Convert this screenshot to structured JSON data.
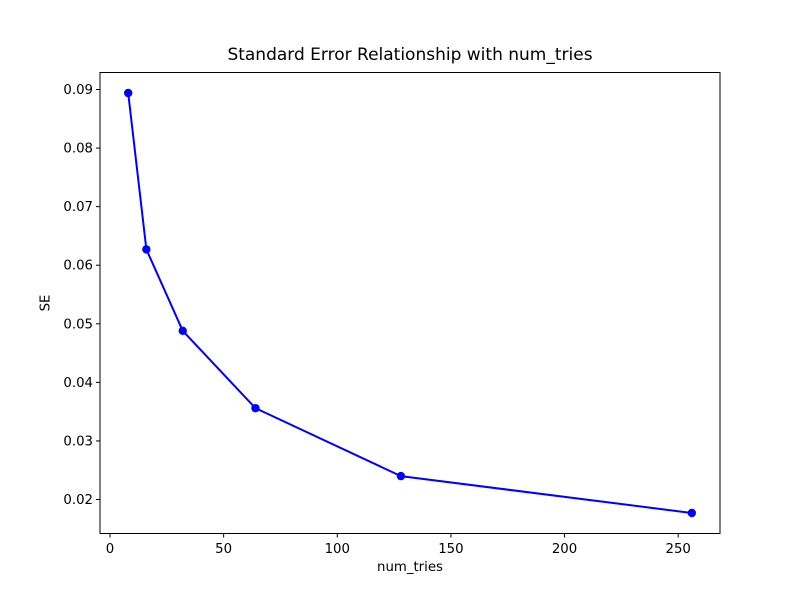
{
  "chart_data": {
    "type": "line",
    "title": "Standard Error Relationship with num_tries",
    "xlabel": "num_tries",
    "ylabel": "SE",
    "x": [
      8,
      16,
      32,
      64,
      128,
      256
    ],
    "y": [
      0.0894,
      0.0627,
      0.0488,
      0.0356,
      0.024,
      0.0177
    ],
    "x_ticks": [
      0,
      50,
      100,
      150,
      200,
      250
    ],
    "y_ticks": [
      0.02,
      0.03,
      0.04,
      0.05,
      0.06,
      0.07,
      0.08,
      0.09
    ],
    "xlim": [
      -4.4,
      268.4
    ],
    "ylim": [
      0.0142,
      0.0929
    ],
    "grid": false,
    "legend": "none",
    "marker": "circle",
    "line_color": "#0000ff",
    "marker_color": "#0000ff",
    "axis_color": "#000000",
    "text_color": "#000000",
    "background_color": "#ffffff"
  }
}
